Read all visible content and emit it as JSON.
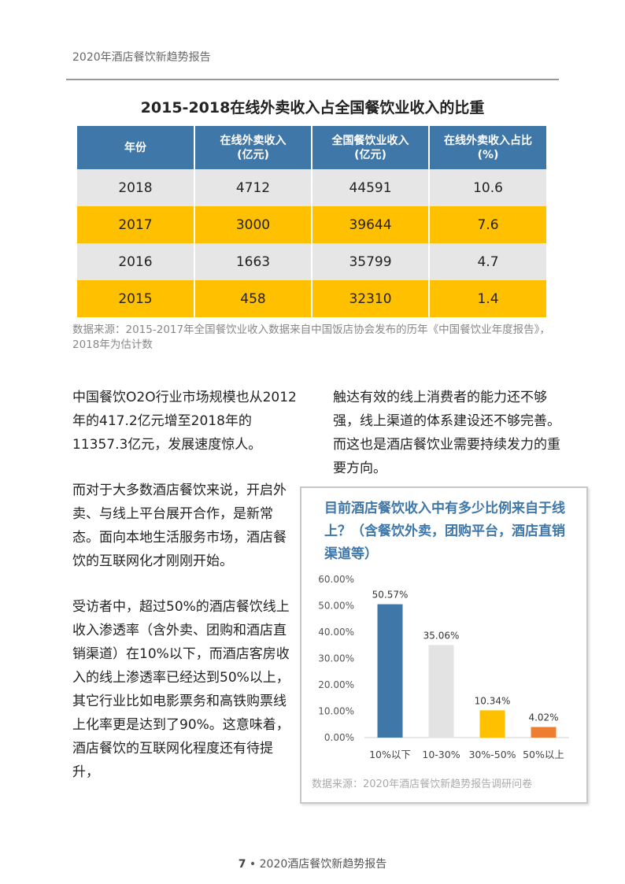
{
  "header": {
    "title": "2020年酒店餐饮新趋势报告"
  },
  "table": {
    "title": "2015-2018在线外卖收入占全国餐饮业收入的比重",
    "headers": [
      [
        "年份",
        ""
      ],
      [
        "在线外卖收入",
        "(亿元)"
      ],
      [
        "全国餐饮业收入",
        "(亿元)"
      ],
      [
        "在线外卖收入占比",
        "(%)"
      ]
    ],
    "rows": [
      [
        "2018",
        "4712",
        "44591",
        "10.6"
      ],
      [
        "2017",
        "3000",
        "39644",
        "7.6"
      ],
      [
        "2016",
        "1663",
        "35799",
        "4.7"
      ],
      [
        "2015",
        "458",
        "32310",
        "1.4"
      ]
    ],
    "source": "数据来源：2015-2017年全国餐饮业收入数据来自中国饭店协会发布的历年《中国餐饮业年度报告》，2018年为估计数"
  },
  "body": {
    "col1": [
      "中国餐饮O2O行业市场规模也从2012年的417.2亿元增至2018年的11357.3亿元，发展速度惊人。",
      "而对于大多数酒店餐饮来说，开启外卖、与线上平台展开合作，是新常态。面向本地生活服务市场，酒店餐饮的互联网化才刚刚开始。",
      "受访者中，超过50%的酒店餐饮线上收入渗透率（含外卖、团购和酒店直销渠道）在10%以下，而酒店客房收入的线上渗透率已经达到50%以上，其它行业比如电影票务和高铁购票线上化率更是达到了90%。这意味着，酒店餐饮的互联网化程度还有待提升，"
    ],
    "col2": [
      "触达有效的线上消费者的能力还不够强，线上渠道的体系建设还不够完善。而这也是酒店餐饮业需要持续发力的重要方向。"
    ]
  },
  "chart_data": {
    "type": "bar",
    "title": "目前酒店餐饮收入中有多少比例来自于线上？（含餐饮外卖，团购平台，酒店直销渠道等）",
    "categories": [
      "10%以下",
      "10-30%",
      "30%-50%",
      "50%以上"
    ],
    "values": [
      50.57,
      35.06,
      10.34,
      4.02
    ],
    "data_labels": [
      "50.57%",
      "35.06%",
      "10.34%",
      "4.02%"
    ],
    "colors": [
      "#3f77a8",
      "#e3e3e3",
      "#ffc000",
      "#ed7d31"
    ],
    "yticks": [
      "0.00%",
      "10.00%",
      "20.00%",
      "30.00%",
      "40.00%",
      "50.00%",
      "60.00%"
    ],
    "ylim": [
      0,
      60
    ],
    "grid": false,
    "source": "数据来源：2020年酒店餐饮新趋势报告调研问卷"
  },
  "footer": {
    "page": "7",
    "sep": "•",
    "title": "2020酒店餐饮新趋势报告"
  }
}
